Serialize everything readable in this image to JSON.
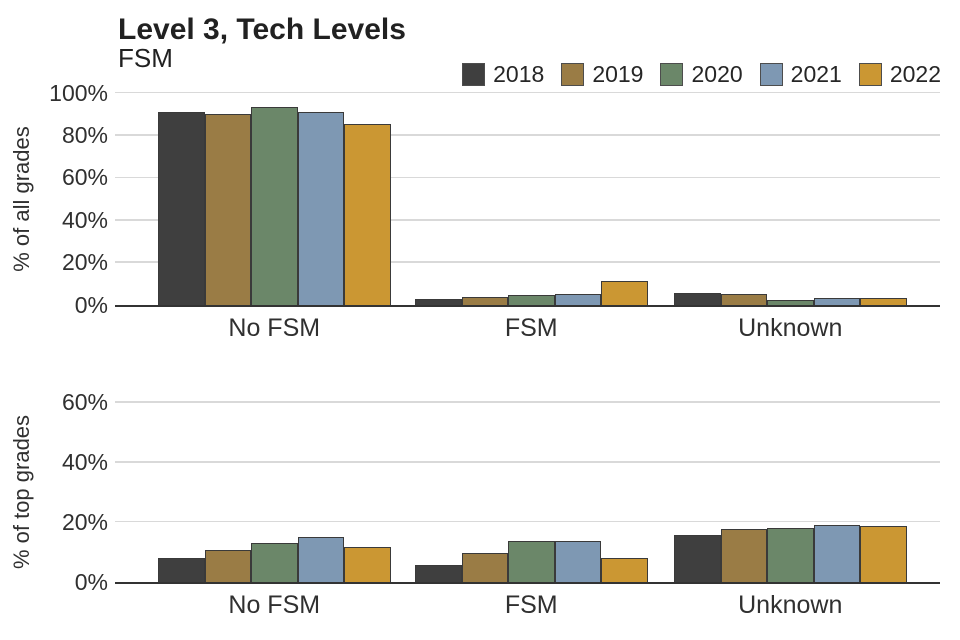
{
  "title": "Level 3, Tech Levels",
  "subtitle": "FSM",
  "legend": {
    "entries": [
      {
        "label": "2018",
        "color": "#3f3f3f"
      },
      {
        "label": "2019",
        "color": "#9a7c45"
      },
      {
        "label": "2020",
        "color": "#6b8769"
      },
      {
        "label": "2021",
        "color": "#7e98b3"
      },
      {
        "label": "2022",
        "color": "#cb9733"
      }
    ]
  },
  "chart_data": [
    {
      "type": "bar",
      "panel": "top",
      "ylabel": "% of all grades",
      "categories": [
        "No FSM",
        "FSM",
        "Unknown"
      ],
      "series": [
        {
          "name": "2018",
          "values": [
            91,
            2.5,
            5.5
          ]
        },
        {
          "name": "2019",
          "values": [
            90,
            3.5,
            5
          ]
        },
        {
          "name": "2020",
          "values": [
            93,
            4.5,
            2
          ]
        },
        {
          "name": "2021",
          "values": [
            91,
            5,
            3
          ]
        },
        {
          "name": "2022",
          "values": [
            85,
            11,
            3
          ]
        }
      ],
      "yticks": [
        0,
        20,
        40,
        60,
        80,
        100
      ],
      "tick_suffix": "%",
      "ylim": [
        0,
        105
      ],
      "grid": true,
      "legend_position": "top-right"
    },
    {
      "type": "bar",
      "panel": "bottom",
      "ylabel": "% of top grades",
      "categories": [
        "No FSM",
        "FSM",
        "Unknown"
      ],
      "series": [
        {
          "name": "2018",
          "values": [
            8,
            5.5,
            15.5
          ]
        },
        {
          "name": "2019",
          "values": [
            10.5,
            9.5,
            17.5
          ]
        },
        {
          "name": "2020",
          "values": [
            13,
            13.5,
            18
          ]
        },
        {
          "name": "2021",
          "values": [
            15,
            13.5,
            19
          ]
        },
        {
          "name": "2022",
          "values": [
            11.5,
            8,
            18.5
          ]
        }
      ],
      "yticks": [
        0,
        20,
        40,
        60
      ],
      "tick_suffix": "%",
      "ylim": [
        0,
        64
      ],
      "grid": true
    }
  ]
}
